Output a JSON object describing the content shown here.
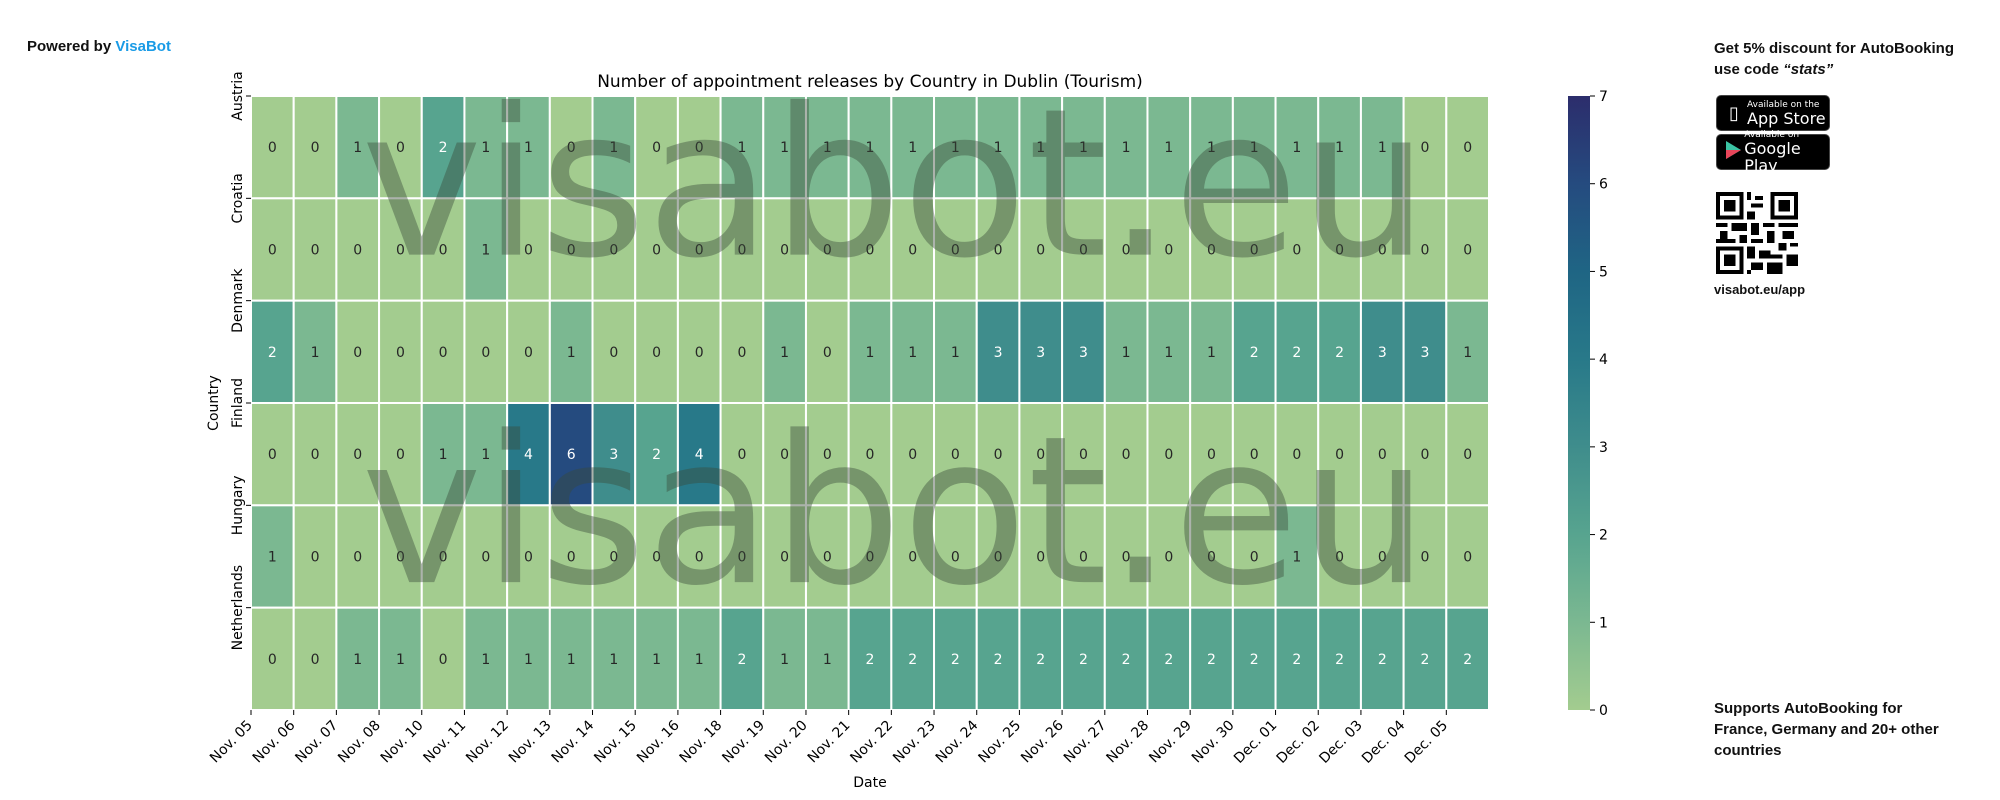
{
  "header": {
    "powered_prefix": "Powered by",
    "powered_brand": "VisaBot"
  },
  "watermark": "visabot.eu",
  "promo": {
    "line1_prefix": "Get 5% discount for ",
    "line1_bold": "AutoBooking",
    "line2_prefix": "use code ",
    "code": "“stats”"
  },
  "app_store": {
    "small": "Available on the",
    "big": "App Store"
  },
  "google_play": {
    "small": "Available on",
    "big": "Google Play"
  },
  "qr_label": "visabot.eu/app",
  "supports": {
    "prefix": "Supports ",
    "bold": "AutoBooking",
    "rest": " for France, Germany and 20+ other countries"
  },
  "colors": {
    "c0": "#a3cc8f",
    "c1": "#7bb891",
    "c2": "#57a48f",
    "c3": "#3f8d8c",
    "c4": "#287989",
    "c5": "#1f6584",
    "c6": "#254b7f",
    "c7": "#2c2d6c"
  },
  "chart_data": {
    "type": "heatmap",
    "title": "Number of appointment releases by Country in Dublin (Tourism)",
    "xlabel": "Date",
    "ylabel": "Country",
    "x": [
      "Nov. 05",
      "Nov. 06",
      "Nov. 07",
      "Nov. 08",
      "Nov. 10",
      "Nov. 11",
      "Nov. 12",
      "Nov. 13",
      "Nov. 14",
      "Nov. 15",
      "Nov. 16",
      "Nov. 18",
      "Nov. 19",
      "Nov. 20",
      "Nov. 21",
      "Nov. 22",
      "Nov. 23",
      "Nov. 24",
      "Nov. 25",
      "Nov. 26",
      "Nov. 27",
      "Nov. 28",
      "Nov. 29",
      "Nov. 30",
      "Dec. 01",
      "Dec. 02",
      "Dec. 03",
      "Dec. 04",
      "Dec. 05"
    ],
    "y": [
      "Austria",
      "Croatia",
      "Denmark",
      "Finland",
      "Hungary",
      "Netherlands"
    ],
    "values": [
      [
        0,
        0,
        1,
        0,
        2,
        1,
        1,
        0,
        1,
        0,
        0,
        1,
        1,
        1,
        1,
        1,
        1,
        1,
        1,
        1,
        1,
        1,
        1,
        1,
        1,
        1,
        1,
        0,
        0
      ],
      [
        0,
        0,
        0,
        0,
        0,
        1,
        0,
        0,
        0,
        0,
        0,
        0,
        0,
        0,
        0,
        0,
        0,
        0,
        0,
        0,
        0,
        0,
        0,
        0,
        0,
        0,
        0,
        0,
        0
      ],
      [
        2,
        1,
        0,
        0,
        0,
        0,
        0,
        1,
        0,
        0,
        0,
        0,
        1,
        0,
        1,
        1,
        1,
        3,
        3,
        3,
        1,
        1,
        1,
        2,
        2,
        2,
        3,
        3,
        1
      ],
      [
        0,
        0,
        0,
        0,
        1,
        1,
        4,
        6,
        3,
        2,
        4,
        0,
        0,
        0,
        0,
        0,
        0,
        0,
        0,
        0,
        0,
        0,
        0,
        0,
        0,
        0,
        0,
        0,
        0
      ],
      [
        1,
        0,
        0,
        0,
        0,
        0,
        0,
        0,
        0,
        0,
        0,
        0,
        0,
        0,
        0,
        0,
        0,
        0,
        0,
        0,
        0,
        0,
        0,
        0,
        1,
        0,
        0,
        0,
        0
      ],
      [
        0,
        0,
        1,
        1,
        0,
        1,
        1,
        1,
        1,
        1,
        1,
        2,
        1,
        1,
        2,
        2,
        2,
        2,
        2,
        2,
        2,
        2,
        2,
        2,
        2,
        2,
        2,
        2,
        2
      ]
    ],
    "colorbar": {
      "range": [
        0,
        7
      ],
      "ticks": [
        "0",
        "1",
        "2",
        "3",
        "4",
        "5",
        "6",
        "7"
      ]
    }
  }
}
